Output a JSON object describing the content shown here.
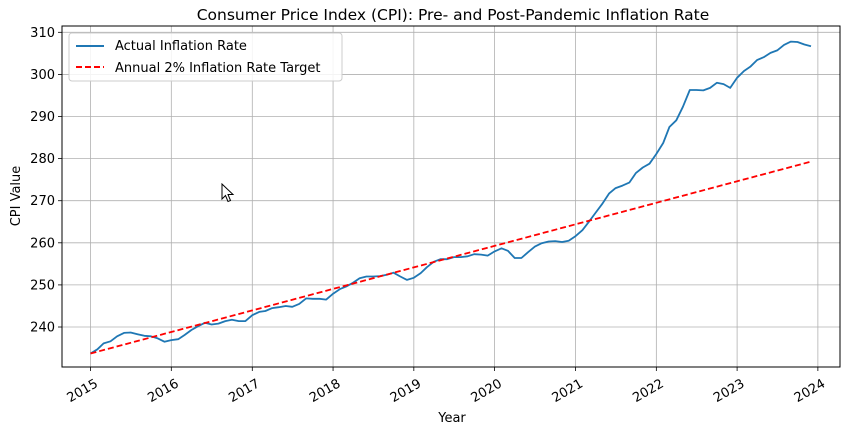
{
  "chart_data": {
    "type": "line",
    "title": "Consumer Price Index (CPI): Pre- and Post-Pandemic Inflation Rate",
    "xlabel": "Year",
    "ylabel": "CPI Value",
    "xlim": [
      "2014-08-25",
      "2024-04-10"
    ],
    "ylim": [
      230.5,
      311.5
    ],
    "x_ticks": [
      "2015",
      "2016",
      "2017",
      "2018",
      "2019",
      "2020",
      "2021",
      "2022",
      "2023",
      "2024"
    ],
    "y_ticks": [
      240,
      250,
      260,
      270,
      280,
      290,
      300,
      310
    ],
    "grid": true,
    "legend_position": "top-left",
    "series": [
      {
        "name": "Actual Inflation Rate",
        "color": "#1f77b4",
        "style": "solid",
        "points": [
          [
            "2015-01-01",
            233.7
          ],
          [
            "2015-02-01",
            234.7
          ],
          [
            "2015-03-01",
            236.1
          ],
          [
            "2015-04-01",
            236.6
          ],
          [
            "2015-05-01",
            237.8
          ],
          [
            "2015-06-01",
            238.6
          ],
          [
            "2015-07-01",
            238.7
          ],
          [
            "2015-08-01",
            238.3
          ],
          [
            "2015-09-01",
            237.9
          ],
          [
            "2015-10-01",
            237.8
          ],
          [
            "2015-11-01",
            237.3
          ],
          [
            "2015-12-01",
            236.5
          ],
          [
            "2016-01-01",
            236.9
          ],
          [
            "2016-02-01",
            237.1
          ],
          [
            "2016-03-01",
            238.1
          ],
          [
            "2016-04-01",
            239.3
          ],
          [
            "2016-05-01",
            240.2
          ],
          [
            "2016-06-01",
            241.0
          ],
          [
            "2016-07-01",
            240.6
          ],
          [
            "2016-08-01",
            240.8
          ],
          [
            "2016-09-01",
            241.4
          ],
          [
            "2016-10-01",
            241.7
          ],
          [
            "2016-11-01",
            241.4
          ],
          [
            "2016-12-01",
            241.4
          ],
          [
            "2017-01-01",
            242.8
          ],
          [
            "2017-02-01",
            243.6
          ],
          [
            "2017-03-01",
            243.8
          ],
          [
            "2017-04-01",
            244.5
          ],
          [
            "2017-05-01",
            244.7
          ],
          [
            "2017-06-01",
            245.0
          ],
          [
            "2017-07-01",
            244.8
          ],
          [
            "2017-08-01",
            245.5
          ],
          [
            "2017-09-01",
            246.8
          ],
          [
            "2017-10-01",
            246.7
          ],
          [
            "2017-11-01",
            246.7
          ],
          [
            "2017-12-01",
            246.5
          ],
          [
            "2018-01-01",
            247.9
          ],
          [
            "2018-02-01",
            249.0
          ],
          [
            "2018-03-01",
            249.6
          ],
          [
            "2018-04-01",
            250.5
          ],
          [
            "2018-05-01",
            251.6
          ],
          [
            "2018-06-01",
            252.0
          ],
          [
            "2018-07-01",
            252.0
          ],
          [
            "2018-08-01",
            252.1
          ],
          [
            "2018-09-01",
            252.4
          ],
          [
            "2018-10-01",
            252.9
          ],
          [
            "2018-11-01",
            252.0
          ],
          [
            "2018-12-01",
            251.2
          ],
          [
            "2019-01-01",
            251.7
          ],
          [
            "2019-02-01",
            252.8
          ],
          [
            "2019-03-01",
            254.2
          ],
          [
            "2019-04-01",
            255.5
          ],
          [
            "2019-05-01",
            256.1
          ],
          [
            "2019-06-01",
            256.1
          ],
          [
            "2019-07-01",
            256.6
          ],
          [
            "2019-08-01",
            256.6
          ],
          [
            "2019-09-01",
            256.8
          ],
          [
            "2019-10-01",
            257.3
          ],
          [
            "2019-11-01",
            257.2
          ],
          [
            "2019-12-01",
            256.97
          ],
          [
            "2020-01-01",
            257.97
          ],
          [
            "2020-02-01",
            258.7
          ],
          [
            "2020-03-01",
            258.1
          ],
          [
            "2020-04-01",
            256.4
          ],
          [
            "2020-05-01",
            256.4
          ],
          [
            "2020-06-01",
            257.8
          ],
          [
            "2020-07-01",
            259.1
          ],
          [
            "2020-08-01",
            259.9
          ],
          [
            "2020-09-01",
            260.3
          ],
          [
            "2020-10-01",
            260.4
          ],
          [
            "2020-11-01",
            260.2
          ],
          [
            "2020-12-01",
            260.5
          ],
          [
            "2021-01-01",
            261.6
          ],
          [
            "2021-02-01",
            263.0
          ],
          [
            "2021-03-01",
            264.9
          ],
          [
            "2021-04-01",
            267.1
          ],
          [
            "2021-05-01",
            269.2
          ],
          [
            "2021-06-01",
            271.7
          ],
          [
            "2021-07-01",
            273.0
          ],
          [
            "2021-08-01",
            273.6
          ],
          [
            "2021-09-01",
            274.3
          ],
          [
            "2021-10-01",
            276.6
          ],
          [
            "2021-11-01",
            277.9
          ],
          [
            "2021-12-01",
            278.8
          ],
          [
            "2022-01-01",
            281.1
          ],
          [
            "2022-02-01",
            283.7
          ],
          [
            "2022-03-01",
            287.5
          ],
          [
            "2022-04-01",
            289.1
          ],
          [
            "2022-05-01",
            292.3
          ],
          [
            "2022-06-01",
            296.3
          ],
          [
            "2022-07-01",
            296.3
          ],
          [
            "2022-08-01",
            296.2
          ],
          [
            "2022-09-01",
            296.8
          ],
          [
            "2022-10-01",
            298.0
          ],
          [
            "2022-11-01",
            297.7
          ],
          [
            "2022-12-01",
            296.8
          ],
          [
            "2023-01-01",
            299.2
          ],
          [
            "2023-02-01",
            300.8
          ],
          [
            "2023-03-01",
            301.8
          ],
          [
            "2023-04-01",
            303.4
          ],
          [
            "2023-05-01",
            304.1
          ],
          [
            "2023-06-01",
            305.1
          ],
          [
            "2023-07-01",
            305.7
          ],
          [
            "2023-08-01",
            307.0
          ],
          [
            "2023-09-01",
            307.8
          ],
          [
            "2023-10-01",
            307.7
          ],
          [
            "2023-11-01",
            307.1
          ],
          [
            "2023-12-01",
            306.7
          ]
        ]
      },
      {
        "name": "Annual 2% Inflation Rate Target",
        "color": "#ff0000",
        "style": "dashed",
        "points": [
          [
            "2015-01-01",
            233.7
          ],
          [
            "2023-12-01",
            279.3
          ]
        ]
      }
    ]
  },
  "cursor": {
    "icon": "mouse-pointer-icon"
  }
}
